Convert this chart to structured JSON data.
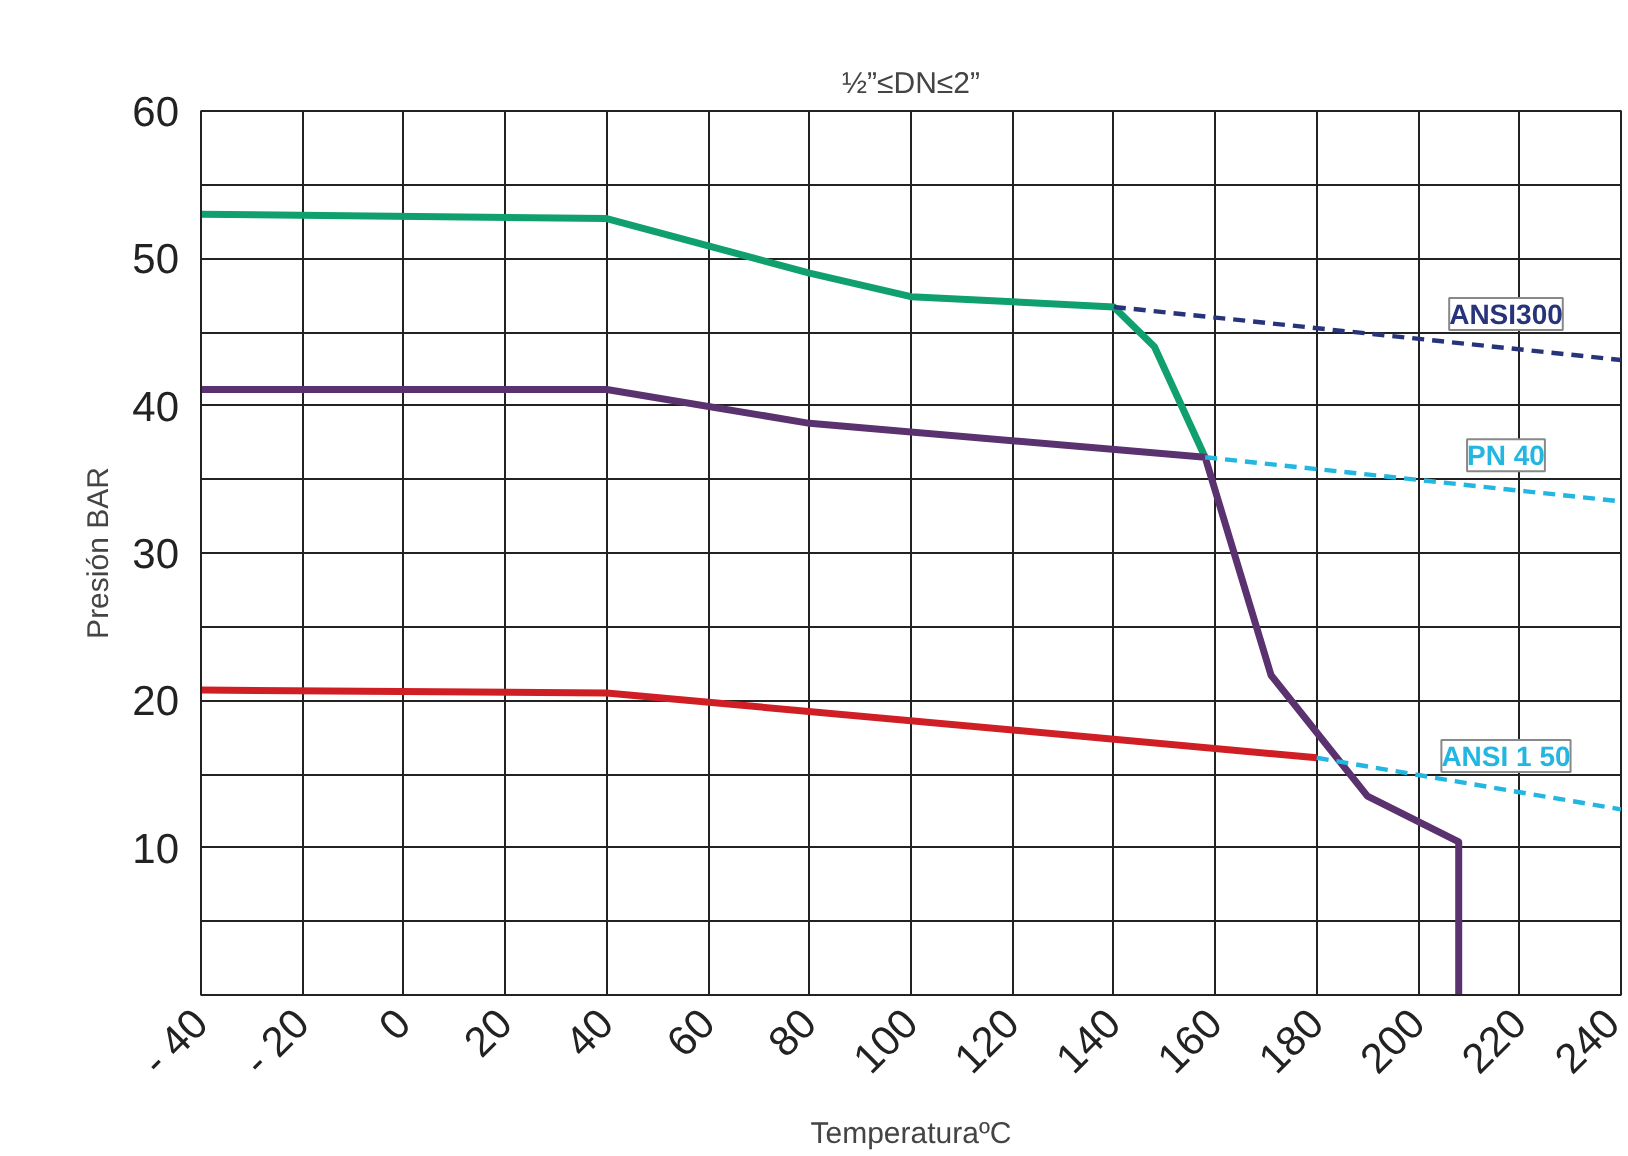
{
  "chart_data": {
    "type": "line",
    "title": "½”≤DN≤2”",
    "xlabel": "TemperaturaºC",
    "ylabel": "Presión BAR",
    "xlim": [
      -40,
      240
    ],
    "xticks": [
      {
        "value": -40,
        "label": "- 40"
      },
      {
        "value": -20,
        "label": "- 20"
      },
      0,
      20,
      40,
      60,
      80,
      100,
      120,
      140,
      160,
      180,
      200,
      220,
      240
    ],
    "ylim": [
      0,
      60
    ],
    "yticks": [
      {
        "value": 0,
        "label": null
      },
      {
        "value": 5,
        "label": null
      },
      10,
      {
        "value": 15,
        "label": null
      },
      20,
      {
        "value": 25,
        "label": null
      },
      30,
      {
        "value": 35,
        "label": null
      },
      40,
      {
        "value": 45,
        "label": null
      },
      50,
      {
        "value": 55,
        "label": null
      },
      60
    ],
    "grid": true,
    "marker": "none",
    "series": [
      {
        "color": "#10a06e",
        "line_style": "solid",
        "x": [
          -40,
          40,
          80,
          100,
          140,
          148,
          158
        ],
        "values": [
          53,
          52.7,
          49,
          47.4,
          46.7,
          44,
          36.5
        ]
      },
      {
        "color": "#5a3270",
        "line_style": "solid",
        "x": [
          -40,
          40,
          80,
          158,
          171,
          190,
          208,
          208
        ],
        "values": [
          41.1,
          41.1,
          38.8,
          36.5,
          21.7,
          13.5,
          10.4,
          0
        ]
      },
      {
        "color": "#d01e25",
        "line_style": "solid",
        "x": [
          -40,
          40,
          180
        ],
        "values": [
          20.7,
          20.5,
          16.1
        ]
      },
      {
        "name": "ANSI300",
        "color": "#27347a",
        "line_style": "dashed",
        "x": [
          140,
          240
        ],
        "values": [
          46.7,
          43.1
        ]
      },
      {
        "name": "PN 40",
        "color": "#22b6e0",
        "line_style": "dashed",
        "x": [
          158,
          240
        ],
        "values": [
          36.5,
          33.5
        ]
      },
      {
        "name": "ANSI 1 50",
        "color": "#22b6e0",
        "line_style": "dashed",
        "x": [
          180,
          240
        ],
        "values": [
          16.1,
          12.6
        ]
      }
    ]
  }
}
